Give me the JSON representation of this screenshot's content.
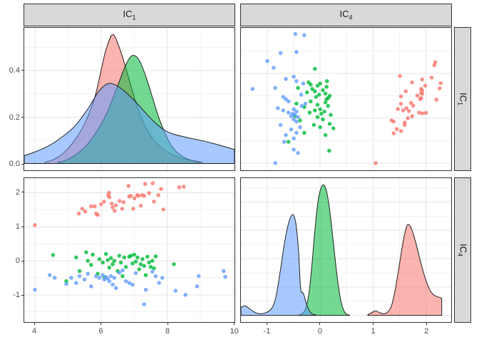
{
  "figure_style": {
    "background": "#ffffff",
    "panel_background": "#ffffff",
    "panel_border": "#333333",
    "grid_major_color": "#e4e4e4",
    "grid_minor_color": "#f2f2f2",
    "strip_background": "#d9d9d9",
    "strip_border": "#333333",
    "axis_text_color": "#4d4d4d",
    "density_stroke": "#1f1f1f",
    "density_fill_opacity": 0.55,
    "point_opacity": 0.8,
    "point_radius": 2.8
  },
  "strips": {
    "top": [
      {
        "base": "IC",
        "sub": "1"
      },
      {
        "base": "IC",
        "sub": "4"
      }
    ],
    "right": [
      {
        "base": "IC",
        "sub": "1"
      },
      {
        "base": "IC",
        "sub": "4"
      }
    ]
  },
  "chart_data": {
    "type": "scatterplot-matrix",
    "variables": [
      "IC1",
      "IC4"
    ],
    "legend": "none",
    "groups": [
      {
        "name": "group-red",
        "color": "#F8766D"
      },
      {
        "name": "group-green",
        "color": "#00BA38"
      },
      {
        "name": "group-blue",
        "color": "#619CFF"
      }
    ],
    "ranges": {
      "IC1": [
        3.68,
        10.03
      ],
      "IC4_x": [
        -1.5,
        2.48
      ],
      "IC4_y": [
        -1.8,
        2.43
      ],
      "dens_IC1": [
        -0.029,
        0.584
      ],
      "dens_IC4": [
        -0.118,
        2.42
      ]
    },
    "x_axis_IC1": {
      "ticks": [
        "4",
        "6",
        "8",
        "10"
      ],
      "values": [
        4,
        6,
        8,
        10
      ],
      "minor": [
        5,
        7,
        9
      ]
    },
    "x_axis_IC4": {
      "ticks": [
        "-1",
        "0",
        "1",
        "2"
      ],
      "values": [
        -1,
        0,
        1,
        2
      ],
      "minor": [
        -0.5,
        0.5,
        1.5
      ]
    },
    "y_axis_dens_IC1": {
      "ticks": [
        "0.0",
        "0.2",
        "0.4"
      ],
      "values": [
        0,
        0.2,
        0.4
      ],
      "minor": [
        0.1,
        0.3,
        0.5
      ]
    },
    "y_axis_IC4": {
      "ticks": [
        "-1",
        "0",
        "1",
        "2"
      ],
      "values": [
        -1,
        0,
        1,
        2
      ],
      "minor": [
        -1.5,
        -0.5,
        0.5,
        1.5
      ]
    },
    "y_grid_dens_IC4": {
      "values": [
        0,
        0.5,
        1,
        1.5,
        2
      ],
      "minor": [
        0.25,
        0.75,
        1.25,
        1.75,
        2.25
      ]
    },
    "panels": [
      {
        "id": "tl",
        "kind": "density",
        "x_var": "IC1",
        "x": "IC1",
        "y": "dens_IC1",
        "data": "density_IC1"
      },
      {
        "id": "tr",
        "kind": "scatter",
        "x_var": "IC4",
        "y_var": "IC1",
        "x": "IC4_x",
        "y": "IC1",
        "xi": 1,
        "yi": 0
      },
      {
        "id": "bl",
        "kind": "scatter",
        "x_var": "IC1",
        "y_var": "IC4",
        "x": "IC1",
        "y": "IC4_y",
        "xi": 0,
        "yi": 1
      },
      {
        "id": "br",
        "kind": "density",
        "x_var": "IC4",
        "x": "IC4_x",
        "y": "dens_IC4",
        "data": "density_IC4"
      }
    ],
    "scatter_points_IC1_IC4": {
      "red": [
        [
          4.0,
          1.05
        ],
        [
          5.33,
          1.39
        ],
        [
          5.43,
          1.53
        ],
        [
          5.52,
          1.45
        ],
        [
          5.7,
          1.6
        ],
        [
          5.81,
          1.6
        ],
        [
          5.85,
          1.39
        ],
        [
          5.9,
          1.35
        ],
        [
          6.0,
          1.66
        ],
        [
          6.09,
          1.74
        ],
        [
          6.22,
          1.93
        ],
        [
          6.24,
          2.0
        ],
        [
          6.25,
          1.87
        ],
        [
          6.32,
          1.68
        ],
        [
          6.35,
          1.57
        ],
        [
          6.41,
          1.47
        ],
        [
          6.45,
          1.63
        ],
        [
          6.56,
          1.76
        ],
        [
          6.64,
          1.53
        ],
        [
          6.68,
          1.72
        ],
        [
          6.83,
          2.2
        ],
        [
          6.85,
          1.89
        ],
        [
          6.9,
          1.91
        ],
        [
          6.97,
          1.53
        ],
        [
          7.01,
          1.84
        ],
        [
          7.09,
          1.93
        ],
        [
          7.13,
          1.91
        ],
        [
          7.2,
          1.62
        ],
        [
          7.24,
          1.93
        ],
        [
          7.3,
          1.91
        ],
        [
          7.33,
          2.26
        ],
        [
          7.45,
          1.99
        ],
        [
          7.56,
          2.28
        ],
        [
          7.6,
          1.74
        ],
        [
          7.73,
          1.93
        ],
        [
          7.81,
          2.11
        ],
        [
          7.88,
          1.51
        ],
        [
          8.36,
          2.16
        ],
        [
          8.5,
          2.18
        ]
      ],
      "green": [
        [
          4.55,
          0.17
        ],
        [
          4.95,
          -0.6
        ],
        [
          5.25,
          0.1
        ],
        [
          5.35,
          -0.3
        ],
        [
          5.55,
          0.25
        ],
        [
          5.6,
          0.0
        ],
        [
          5.7,
          -0.12
        ],
        [
          5.75,
          0.18
        ],
        [
          5.9,
          -0.38
        ],
        [
          5.95,
          0.05
        ],
        [
          6.05,
          -0.05
        ],
        [
          6.1,
          -0.48
        ],
        [
          6.15,
          0.2
        ],
        [
          6.2,
          0.02
        ],
        [
          6.25,
          -0.2
        ],
        [
          6.3,
          0.08
        ],
        [
          6.35,
          -0.1
        ],
        [
          6.4,
          0.0
        ],
        [
          6.5,
          -0.3
        ],
        [
          6.55,
          0.15
        ],
        [
          6.6,
          -0.05
        ],
        [
          6.65,
          -0.45
        ],
        [
          6.7,
          0.1
        ],
        [
          6.75,
          -0.18
        ],
        [
          6.85,
          0.12
        ],
        [
          6.9,
          0.15
        ],
        [
          6.95,
          -0.08
        ],
        [
          7.0,
          0.18
        ],
        [
          7.05,
          -0.02
        ],
        [
          7.1,
          0.1
        ],
        [
          7.15,
          -0.25
        ],
        [
          7.2,
          -0.1
        ],
        [
          7.25,
          0.05
        ],
        [
          7.3,
          -0.15
        ],
        [
          7.35,
          -0.42
        ],
        [
          7.4,
          0.12
        ],
        [
          7.45,
          -0.05
        ],
        [
          7.5,
          -0.18
        ],
        [
          7.55,
          0.0
        ],
        [
          7.6,
          -0.22
        ],
        [
          7.65,
          0.13
        ],
        [
          8.2,
          -0.1
        ]
      ],
      "blue": [
        [
          4.0,
          -0.85
        ],
        [
          4.45,
          -0.42
        ],
        [
          4.6,
          -0.5
        ],
        [
          4.95,
          -0.68
        ],
        [
          5.1,
          -0.5
        ],
        [
          5.25,
          -0.65
        ],
        [
          5.35,
          -0.45
        ],
        [
          5.5,
          -0.55
        ],
        [
          5.6,
          -0.38
        ],
        [
          5.7,
          -0.75
        ],
        [
          5.85,
          -0.45
        ],
        [
          5.95,
          -0.5
        ],
        [
          6.05,
          -0.42
        ],
        [
          6.1,
          -0.55
        ],
        [
          6.15,
          -0.48
        ],
        [
          6.2,
          -0.52
        ],
        [
          6.25,
          -0.6
        ],
        [
          6.3,
          -0.45
        ],
        [
          6.35,
          -0.7
        ],
        [
          6.4,
          -0.5
        ],
        [
          6.45,
          -0.8
        ],
        [
          6.55,
          -0.35
        ],
        [
          6.65,
          -0.28
        ],
        [
          6.75,
          -0.6
        ],
        [
          6.85,
          -0.65
        ],
        [
          6.95,
          -0.7
        ],
        [
          7.05,
          -0.36
        ],
        [
          7.3,
          -1.28
        ],
        [
          7.35,
          -0.85
        ],
        [
          7.55,
          -0.32
        ],
        [
          7.65,
          -0.45
        ],
        [
          7.75,
          -0.65
        ],
        [
          7.85,
          -0.5
        ],
        [
          8.25,
          -0.88
        ],
        [
          8.55,
          -1.0
        ],
        [
          8.9,
          -0.75
        ],
        [
          8.95,
          -0.45
        ],
        [
          9.7,
          -0.3
        ],
        [
          9.75,
          -0.47
        ]
      ]
    },
    "density_IC1": {
      "red": [
        [
          4.3,
          0.005
        ],
        [
          4.6,
          0.02
        ],
        [
          4.9,
          0.05
        ],
        [
          5.2,
          0.1
        ],
        [
          5.5,
          0.17
        ],
        [
          5.8,
          0.28
        ],
        [
          6.0,
          0.4
        ],
        [
          6.15,
          0.49
        ],
        [
          6.35,
          0.555
        ],
        [
          6.55,
          0.5
        ],
        [
          6.75,
          0.41
        ],
        [
          6.95,
          0.31
        ],
        [
          7.15,
          0.22
        ],
        [
          7.35,
          0.155
        ],
        [
          7.6,
          0.1
        ],
        [
          7.9,
          0.06
        ],
        [
          8.2,
          0.035
        ],
        [
          8.5,
          0.02
        ],
        [
          8.8,
          0.012
        ],
        [
          9.05,
          0.006
        ]
      ],
      "green": [
        [
          4.7,
          0.005
        ],
        [
          5.0,
          0.018
        ],
        [
          5.3,
          0.045
        ],
        [
          5.6,
          0.085
        ],
        [
          5.9,
          0.145
        ],
        [
          6.2,
          0.225
        ],
        [
          6.5,
          0.335
        ],
        [
          6.75,
          0.425
        ],
        [
          6.95,
          0.465
        ],
        [
          7.15,
          0.445
        ],
        [
          7.35,
          0.375
        ],
        [
          7.55,
          0.285
        ],
        [
          7.75,
          0.195
        ],
        [
          7.95,
          0.125
        ],
        [
          8.15,
          0.072
        ],
        [
          8.4,
          0.036
        ],
        [
          8.7,
          0.015
        ],
        [
          8.95,
          0.006
        ]
      ],
      "blue": [
        [
          3.68,
          0.034
        ],
        [
          4.0,
          0.05
        ],
        [
          4.4,
          0.075
        ],
        [
          4.8,
          0.112
        ],
        [
          5.2,
          0.16
        ],
        [
          5.6,
          0.235
        ],
        [
          5.9,
          0.305
        ],
        [
          6.1,
          0.335
        ],
        [
          6.25,
          0.345
        ],
        [
          6.45,
          0.337
        ],
        [
          6.7,
          0.312
        ],
        [
          7.0,
          0.272
        ],
        [
          7.3,
          0.225
        ],
        [
          7.6,
          0.18
        ],
        [
          7.9,
          0.145
        ],
        [
          8.2,
          0.126
        ],
        [
          8.6,
          0.112
        ],
        [
          9.0,
          0.1
        ],
        [
          9.4,
          0.086
        ],
        [
          9.8,
          0.07
        ],
        [
          10.03,
          0.06
        ]
      ]
    },
    "density_IC4": {
      "red": [
        [
          0.9,
          0.01
        ],
        [
          0.98,
          0.05
        ],
        [
          1.05,
          0.08
        ],
        [
          1.12,
          0.05
        ],
        [
          1.2,
          0.03
        ],
        [
          1.28,
          0.06
        ],
        [
          1.35,
          0.17
        ],
        [
          1.42,
          0.45
        ],
        [
          1.5,
          0.9
        ],
        [
          1.57,
          1.3
        ],
        [
          1.63,
          1.55
        ],
        [
          1.68,
          1.6
        ],
        [
          1.74,
          1.5
        ],
        [
          1.81,
          1.28
        ],
        [
          1.89,
          0.98
        ],
        [
          1.98,
          0.68
        ],
        [
          2.07,
          0.46
        ],
        [
          2.15,
          0.36
        ],
        [
          2.22,
          0.33
        ],
        [
          2.3,
          0.3
        ]
      ],
      "green": [
        [
          -0.42,
          0.005
        ],
        [
          -0.36,
          0.02
        ],
        [
          -0.3,
          0.07
        ],
        [
          -0.25,
          0.2
        ],
        [
          -0.2,
          0.48
        ],
        [
          -0.15,
          0.95
        ],
        [
          -0.1,
          1.5
        ],
        [
          -0.05,
          1.95
        ],
        [
          0.0,
          2.2
        ],
        [
          0.05,
          2.3
        ],
        [
          0.1,
          2.25
        ],
        [
          0.15,
          2.05
        ],
        [
          0.2,
          1.7
        ],
        [
          0.25,
          1.28
        ],
        [
          0.3,
          0.85
        ],
        [
          0.35,
          0.48
        ],
        [
          0.4,
          0.22
        ],
        [
          0.45,
          0.08
        ],
        [
          0.5,
          0.02
        ],
        [
          0.56,
          0.005
        ]
      ],
      "blue": [
        [
          -1.5,
          0.14
        ],
        [
          -1.42,
          0.17
        ],
        [
          -1.33,
          0.11
        ],
        [
          -1.2,
          0.04
        ],
        [
          -1.05,
          0.04
        ],
        [
          -0.92,
          0.12
        ],
        [
          -0.84,
          0.32
        ],
        [
          -0.76,
          0.75
        ],
        [
          -0.68,
          1.25
        ],
        [
          -0.6,
          1.62
        ],
        [
          -0.52,
          1.78
        ],
        [
          -0.46,
          1.62
        ],
        [
          -0.41,
          1.15
        ],
        [
          -0.38,
          0.6
        ],
        [
          -0.36,
          0.42
        ],
        [
          -0.33,
          0.4
        ],
        [
          -0.3,
          0.34
        ],
        [
          -0.26,
          0.2
        ],
        [
          -0.21,
          0.09
        ],
        [
          -0.15,
          0.025
        ],
        [
          -0.08,
          0.008
        ]
      ]
    }
  }
}
